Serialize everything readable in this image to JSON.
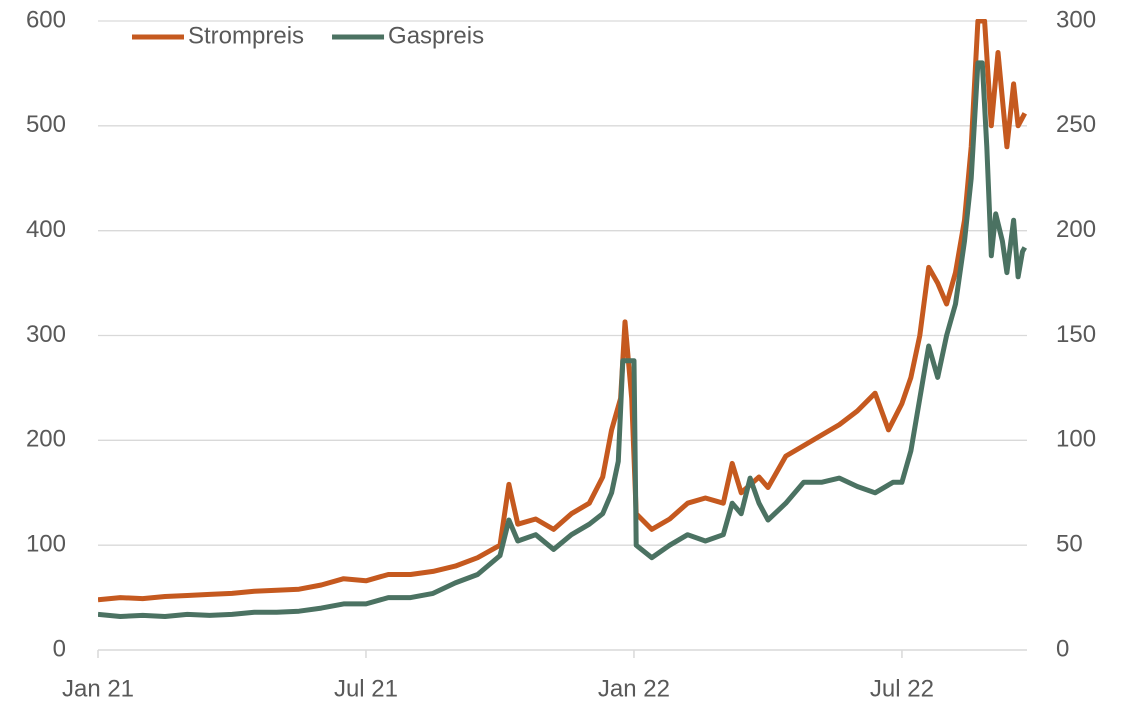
{
  "chart_data": {
    "type": "line",
    "xlim": [
      0,
      20.8
    ],
    "xticks": [
      {
        "value": 0,
        "label": "Jan 21"
      },
      {
        "value": 6,
        "label": "Jul 21"
      },
      {
        "value": 12,
        "label": "Jan 22"
      },
      {
        "value": 18,
        "label": "Jul 22"
      }
    ],
    "ylim": [
      0,
      600
    ],
    "yticks": [
      0,
      100,
      200,
      300,
      400,
      500,
      600
    ],
    "y2lim": [
      0,
      300
    ],
    "y2ticks": [
      0,
      50,
      100,
      150,
      200,
      250,
      300
    ],
    "grid": true,
    "legend": "top-left",
    "series": [
      {
        "name": "Strompreis",
        "color": "#c5591f",
        "x": [
          0,
          0.5,
          1,
          1.5,
          2,
          2.5,
          3,
          3.5,
          4,
          4.5,
          5,
          5.5,
          6,
          6.5,
          7,
          7.5,
          8,
          8.5,
          9,
          9.2,
          9.4,
          9.8,
          10.2,
          10.6,
          11,
          11.3,
          11.5,
          11.7,
          11.8,
          11.95,
          12.05,
          12.4,
          12.8,
          13.2,
          13.6,
          14,
          14.2,
          14.4,
          14.8,
          15,
          15.4,
          15.8,
          16.2,
          16.6,
          17,
          17.4,
          17.7,
          18,
          18.2,
          18.4,
          18.6,
          18.8,
          19,
          19.2,
          19.4,
          19.55,
          19.7,
          19.85,
          20,
          20.15,
          20.35,
          20.5,
          20.6,
          20.75
        ],
        "values": [
          48,
          50,
          49,
          51,
          52,
          53,
          54,
          56,
          57,
          58,
          62,
          68,
          66,
          72,
          72,
          75,
          80,
          88,
          100,
          158,
          120,
          125,
          115,
          130,
          140,
          165,
          210,
          240,
          313,
          240,
          130,
          115,
          125,
          140,
          145,
          140,
          178,
          150,
          165,
          155,
          185,
          195,
          205,
          215,
          228,
          245,
          210,
          235,
          260,
          300,
          365,
          350,
          330,
          360,
          410,
          480,
          600,
          600,
          500,
          570,
          480,
          540,
          500,
          512
        ]
      },
      {
        "name": "Gaspreis",
        "color": "#4b7262",
        "axis": "y2",
        "x": [
          0,
          0.5,
          1,
          1.5,
          2,
          2.5,
          3,
          3.5,
          4,
          4.5,
          5,
          5.5,
          6,
          6.5,
          7,
          7.5,
          8,
          8.5,
          9,
          9.2,
          9.4,
          9.8,
          10.2,
          10.6,
          11,
          11.3,
          11.5,
          11.65,
          11.75,
          12,
          12.05,
          12.4,
          12.8,
          13.2,
          13.6,
          14,
          14.2,
          14.4,
          14.6,
          14.8,
          15,
          15.4,
          15.8,
          16.2,
          16.6,
          17,
          17.4,
          17.8,
          18,
          18.2,
          18.4,
          18.6,
          18.8,
          19,
          19.2,
          19.4,
          19.55,
          19.7,
          19.8,
          19.9,
          20,
          20.1,
          20.25,
          20.35,
          20.5,
          20.6,
          20.7,
          20.75
        ],
        "values": [
          17,
          16,
          16.5,
          16,
          17,
          16.5,
          17,
          18,
          18,
          18.5,
          20,
          22,
          22,
          25,
          25,
          27,
          32,
          36,
          45,
          62,
          52,
          55,
          48,
          55,
          60,
          65,
          75,
          90,
          138,
          138,
          50,
          44,
          50,
          55,
          52,
          55,
          70,
          65,
          82,
          70,
          62,
          70,
          80,
          80,
          82,
          78,
          75,
          80,
          80,
          95,
          120,
          145,
          130,
          150,
          165,
          195,
          225,
          280,
          280,
          240,
          188,
          208,
          195,
          180,
          205,
          178,
          190,
          192
        ]
      }
    ]
  }
}
